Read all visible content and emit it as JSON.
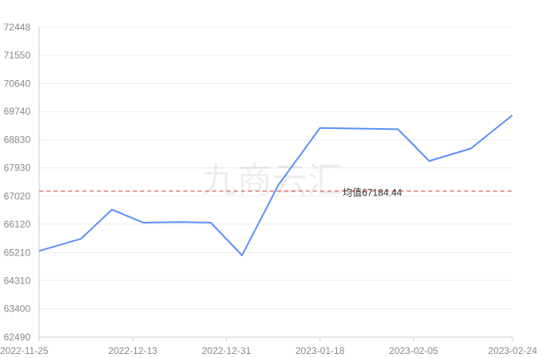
{
  "chart_data": {
    "type": "line",
    "x": [
      "2022-11-25",
      "2022-12-03",
      "2022-12-09",
      "2022-12-15",
      "2022-12-22",
      "2022-12-28",
      "2023-01-03",
      "2023-01-10",
      "2023-01-18",
      "2023-02-02",
      "2023-02-08",
      "2023-02-16",
      "2023-02-24"
    ],
    "series": [
      {
        "values": [
          65260,
          65650,
          66590,
          66170,
          66190,
          66170,
          65120,
          67380,
          69210,
          69170,
          68150,
          68550,
          69620
        ]
      }
    ],
    "x_ticks": [
      "2022-11-25",
      "2022-12-13",
      "2022-12-31",
      "2023-01-18",
      "2023-02-05",
      "2023-02-24"
    ],
    "y_ticks": [
      "62490",
      "63400",
      "64310",
      "65210",
      "66120",
      "67020",
      "67930",
      "68830",
      "69740",
      "70640",
      "71550",
      "72448"
    ],
    "ylim": [
      62490,
      72448
    ],
    "xlim": [
      "2022-11-25",
      "2023-02-24"
    ],
    "average": {
      "value": 67184.44,
      "label": "均值67184.44"
    },
    "grid": true,
    "line_color": "#5b8ff9",
    "average_color": "#e8504f"
  },
  "watermark": "九商云汇"
}
